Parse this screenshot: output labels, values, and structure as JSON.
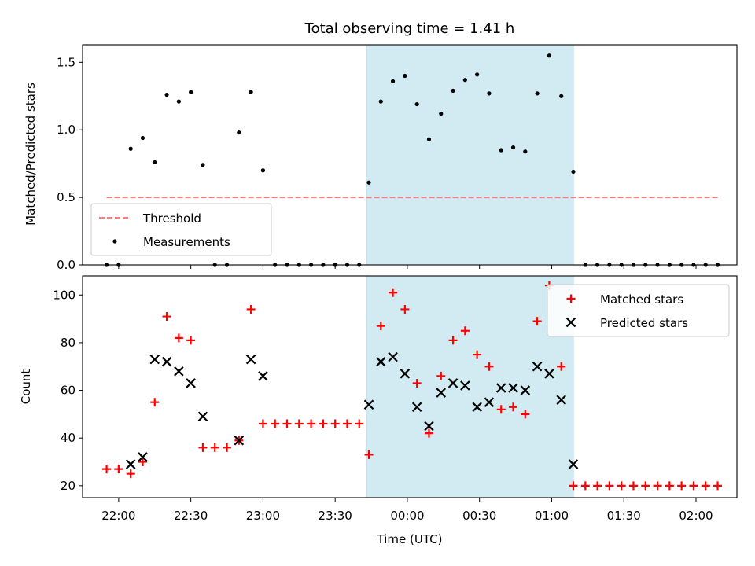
{
  "chart_data": [
    {
      "type": "scatter",
      "title": "Total observing time = 1.41 h",
      "xlabel": "",
      "ylabel": "Matched/Predicted stars",
      "xlim": [
        "21:45",
        "02:17"
      ],
      "ylim": [
        0,
        1.63
      ],
      "yticks": [
        "0.0",
        "0.5",
        "1.0",
        "1.5"
      ],
      "highlight_span": {
        "start": "23:43",
        "end": "01:09",
        "color": "#add8e6"
      },
      "series": [
        {
          "name": "Threshold",
          "style": "dashed-line",
          "color": "#f08080",
          "x": [
            "21:55",
            "02:10"
          ],
          "y": [
            0.5,
            0.5
          ]
        },
        {
          "name": "Measurements",
          "style": "dot",
          "color": "#000000",
          "x": [
            "21:55",
            "22:00",
            "22:05",
            "22:10",
            "22:15",
            "22:20",
            "22:25",
            "22:30",
            "22:35",
            "22:40",
            "22:45",
            "22:50",
            "22:55",
            "23:00",
            "23:05",
            "23:10",
            "23:15",
            "23:20",
            "23:25",
            "23:30",
            "23:35",
            "23:40",
            "23:44",
            "23:49",
            "23:54",
            "23:59",
            "24:04",
            "24:09",
            "24:14",
            "24:19",
            "24:24",
            "24:29",
            "24:34",
            "24:39",
            "24:44",
            "24:49",
            "24:54",
            "24:59",
            "25:04",
            "25:09",
            "25:14",
            "25:19",
            "25:24",
            "25:29",
            "25:34",
            "25:39",
            "25:44",
            "25:49",
            "25:54",
            "25:59",
            "26:04",
            "26:09"
          ],
          "y": [
            0.0,
            0.0,
            0.86,
            0.94,
            0.76,
            1.26,
            1.21,
            1.28,
            0.74,
            0.0,
            0.0,
            0.98,
            1.28,
            0.7,
            0.0,
            0.0,
            0.0,
            0.0,
            0.0,
            0.0,
            0.0,
            0.0,
            0.61,
            1.21,
            1.36,
            1.4,
            1.19,
            0.93,
            1.12,
            1.29,
            1.37,
            1.41,
            1.27,
            0.85,
            0.87,
            0.84,
            1.27,
            1.55,
            1.25,
            0.69,
            0.0,
            0.0,
            0.0,
            0.0,
            0.0,
            0.0,
            0.0,
            0.0,
            0.0,
            0.0,
            0.0,
            0.0
          ]
        }
      ]
    },
    {
      "type": "scatter",
      "title": "",
      "xlabel": "Time (UTC)",
      "ylabel": "Count",
      "xlim": [
        "21:45",
        "02:17"
      ],
      "ylim": [
        15,
        108
      ],
      "yticks": [
        "20",
        "40",
        "60",
        "80",
        "100"
      ],
      "xticks": [
        "22:00",
        "22:30",
        "23:00",
        "23:30",
        "00:00",
        "00:30",
        "01:00",
        "01:30",
        "02:00"
      ],
      "highlight_span": {
        "start": "23:43",
        "end": "01:09",
        "color": "#add8e6"
      },
      "series": [
        {
          "name": "Matched stars",
          "marker": "+",
          "color": "#ff0000",
          "x": [
            "21:55",
            "22:00",
            "22:05",
            "22:10",
            "22:15",
            "22:20",
            "22:25",
            "22:30",
            "22:35",
            "22:40",
            "22:45",
            "22:50",
            "22:55",
            "23:00",
            "23:05",
            "23:10",
            "23:15",
            "23:20",
            "23:25",
            "23:30",
            "23:35",
            "23:40",
            "23:44",
            "23:49",
            "23:54",
            "23:59",
            "24:04",
            "24:09",
            "24:14",
            "24:19",
            "24:24",
            "24:29",
            "24:34",
            "24:39",
            "24:44",
            "24:49",
            "24:54",
            "24:59",
            "25:04",
            "25:09",
            "25:14",
            "25:19",
            "25:24",
            "25:29",
            "25:34",
            "25:39",
            "25:44",
            "25:49",
            "25:54",
            "25:59",
            "26:04",
            "26:09"
          ],
          "y": [
            27,
            27,
            25,
            30,
            55,
            91,
            82,
            81,
            36,
            36,
            36,
            39,
            94,
            46,
            46,
            46,
            46,
            46,
            46,
            46,
            46,
            46,
            33,
            87,
            101,
            94,
            63,
            42,
            66,
            81,
            85,
            75,
            70,
            52,
            53,
            50,
            89,
            104,
            70,
            20,
            20,
            20,
            20,
            20,
            20,
            20,
            20,
            20,
            20,
            20,
            20,
            20
          ]
        },
        {
          "name": "Predicted stars",
          "marker": "x",
          "color": "#000000",
          "x": [
            "22:05",
            "22:10",
            "22:15",
            "22:20",
            "22:25",
            "22:30",
            "22:35",
            "22:50",
            "22:55",
            "23:00",
            "23:44",
            "23:49",
            "23:54",
            "23:59",
            "24:04",
            "24:09",
            "24:14",
            "24:19",
            "24:24",
            "24:29",
            "24:34",
            "24:39",
            "24:44",
            "24:49",
            "24:54",
            "24:59",
            "25:04",
            "25:09"
          ],
          "y": [
            29,
            32,
            73,
            72,
            68,
            63,
            49,
            39,
            73,
            66,
            54,
            72,
            74,
            67,
            53,
            45,
            59,
            63,
            62,
            53,
            55,
            61,
            61,
            60,
            70,
            67,
            56,
            29
          ]
        }
      ]
    }
  ]
}
